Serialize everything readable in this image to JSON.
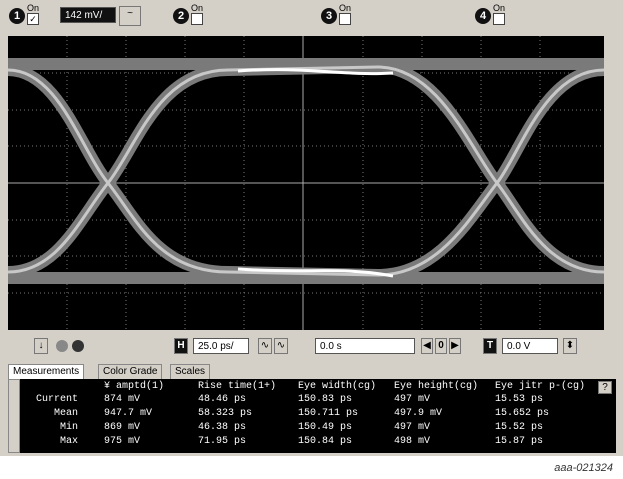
{
  "channels": [
    {
      "number": "1",
      "label": "On",
      "scale": "142 mV/"
    },
    {
      "number": "2",
      "label": "On"
    },
    {
      "number": "3",
      "label": "On"
    },
    {
      "number": "4",
      "label": "On"
    }
  ],
  "controls": {
    "h_label": "H",
    "h_scale": "25.0 ps/",
    "delay": "0.0 s",
    "step": "0",
    "t_label": "T",
    "t_level": "0.0 V"
  },
  "tabs": [
    "Measurements",
    "Color Grade",
    "Scales"
  ],
  "table": {
    "header": [
      "¥ amptd(1)",
      "Rise time(1+)",
      "Eye width(cg)",
      "Eye height(cg)",
      "Eye jitr p-(cg)"
    ],
    "help": "?",
    "rows": [
      [
        "Current",
        "874 mV",
        "48.46 ps",
        "150.83 ps",
        "497 mV",
        "15.53 ps"
      ],
      [
        "Mean",
        "947.7 mV",
        "58.323 ps",
        "150.711 ps",
        "497.9 mV",
        "15.652 ps"
      ],
      [
        "Min",
        "869 mV",
        "46.38 ps",
        "150.49 ps",
        "497 mV",
        "15.52 ps"
      ],
      [
        "Max",
        "975 mV",
        "71.95 ps",
        "150.84 ps",
        "498 mV",
        "15.87 ps"
      ]
    ]
  },
  "footer": "aaa-021324"
}
